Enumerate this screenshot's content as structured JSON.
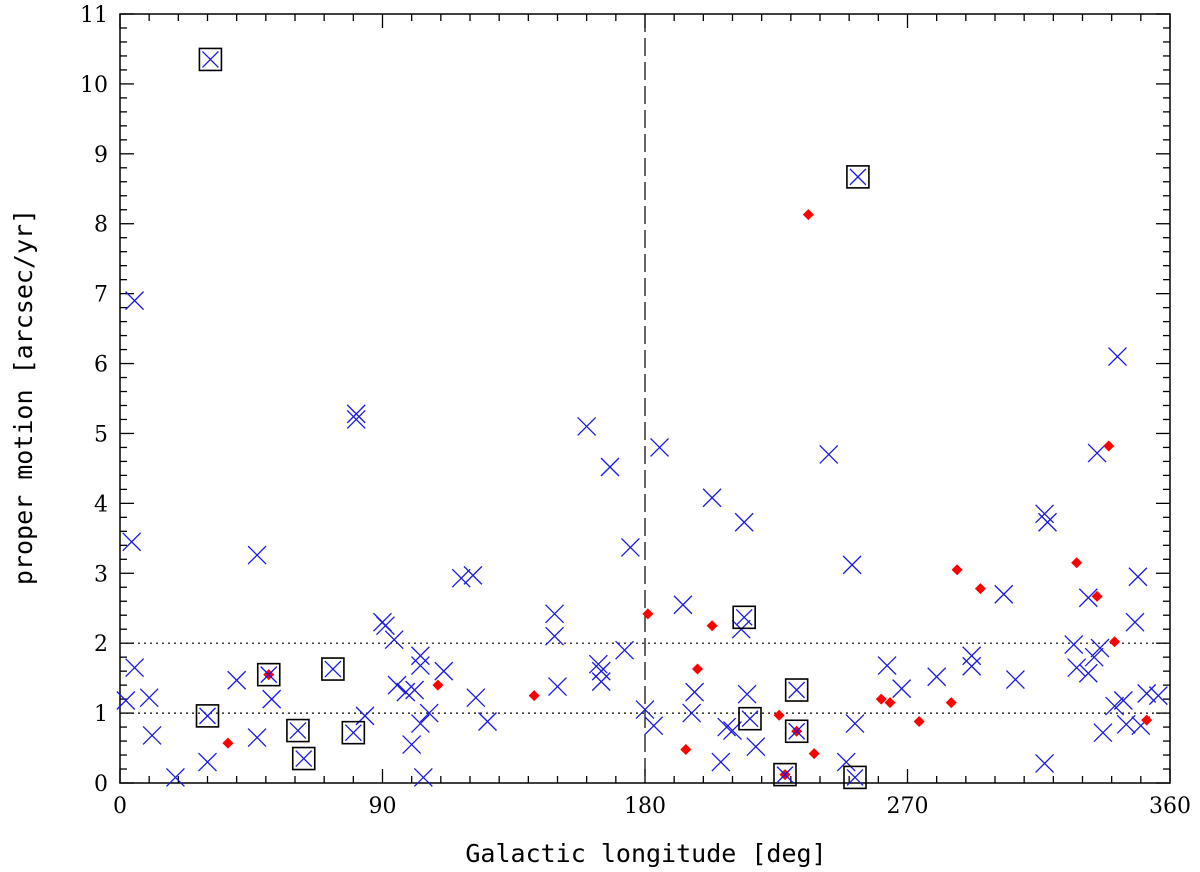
{
  "chart_data": {
    "type": "scatter",
    "title": "",
    "xlabel": "Galactic longitude [deg]",
    "ylabel": "proper motion [arcsec/yr]",
    "xlim": [
      0,
      360
    ],
    "ylim": [
      0,
      11
    ],
    "xticks": [
      0,
      90,
      180,
      270,
      360
    ],
    "yticks": [
      0,
      1,
      2,
      3,
      4,
      5,
      6,
      7,
      8,
      9,
      10,
      11
    ],
    "grid": false,
    "legend": "none",
    "reference_lines": [
      {
        "axis": "x",
        "value": 180,
        "style": "dashed"
      },
      {
        "axis": "y",
        "value": 1,
        "style": "dotted"
      },
      {
        "axis": "y",
        "value": 2,
        "style": "dotted"
      }
    ],
    "colors": {
      "cross": "#1a1ae0",
      "diamond": "#ff0000",
      "square": "#000000"
    },
    "series": [
      {
        "marker": "x",
        "points": [
          [
            2,
            1.18
          ],
          [
            4,
            3.45
          ],
          [
            5,
            6.9
          ],
          [
            5,
            1.65
          ],
          [
            10,
            1.22
          ],
          [
            11,
            0.68
          ],
          [
            19,
            0.08
          ],
          [
            30,
            0.3
          ],
          [
            40,
            1.47
          ],
          [
            47,
            3.26
          ],
          [
            47,
            0.65
          ],
          [
            52,
            1.2
          ],
          [
            81,
            5.28
          ],
          [
            81,
            5.2
          ],
          [
            84,
            0.96
          ],
          [
            90,
            2.3
          ],
          [
            91,
            2.25
          ],
          [
            94,
            2.05
          ],
          [
            95,
            1.4
          ],
          [
            98,
            1.3
          ],
          [
            100,
            0.55
          ],
          [
            101,
            1.33
          ],
          [
            103,
            1.82
          ],
          [
            103,
            1.68
          ],
          [
            103,
            0.85
          ],
          [
            104,
            0.08
          ],
          [
            106,
            1.0
          ],
          [
            111,
            1.6
          ],
          [
            117,
            2.93
          ],
          [
            121,
            2.97
          ],
          [
            122,
            1.22
          ],
          [
            126,
            0.88
          ],
          [
            149,
            2.42
          ],
          [
            149,
            2.1
          ],
          [
            150,
            1.38
          ],
          [
            160,
            5.1
          ],
          [
            164,
            1.7
          ],
          [
            165,
            1.6
          ],
          [
            165,
            1.45
          ],
          [
            168,
            4.52
          ],
          [
            173,
            1.9
          ],
          [
            175,
            3.37
          ],
          [
            180,
            1.05
          ],
          [
            183,
            0.82
          ],
          [
            185,
            4.8
          ],
          [
            193,
            2.55
          ],
          [
            196,
            1.0
          ],
          [
            197,
            1.3
          ],
          [
            203,
            4.08
          ],
          [
            206,
            0.3
          ],
          [
            208,
            0.8
          ],
          [
            210,
            0.75
          ],
          [
            213,
            2.2
          ],
          [
            214,
            3.73
          ],
          [
            215,
            1.27
          ],
          [
            218,
            0.52
          ],
          [
            243,
            4.7
          ],
          [
            249,
            0.3
          ],
          [
            251,
            3.12
          ],
          [
            252,
            0.85
          ],
          [
            263,
            1.68
          ],
          [
            268,
            1.35
          ],
          [
            280,
            1.52
          ],
          [
            292,
            1.82
          ],
          [
            292,
            1.67
          ],
          [
            303,
            2.7
          ],
          [
            307,
            1.48
          ],
          [
            317,
            3.85
          ],
          [
            317,
            0.28
          ],
          [
            318,
            3.73
          ],
          [
            327,
            1.98
          ],
          [
            328,
            1.65
          ],
          [
            332,
            1.57
          ],
          [
            332,
            2.65
          ],
          [
            334,
            1.8
          ],
          [
            335,
            4.72
          ],
          [
            336,
            1.93
          ],
          [
            337,
            0.72
          ],
          [
            341,
            1.1
          ],
          [
            342,
            6.1
          ],
          [
            344,
            1.18
          ],
          [
            345,
            0.84
          ],
          [
            348,
            2.3
          ],
          [
            349,
            2.95
          ],
          [
            350,
            0.82
          ],
          [
            352,
            1.28
          ],
          [
            356,
            1.25
          ]
        ]
      },
      {
        "marker": "diamond",
        "points": [
          [
            37,
            0.57
          ],
          [
            51,
            1.55
          ],
          [
            109,
            1.4
          ],
          [
            142,
            1.25
          ],
          [
            181,
            2.42
          ],
          [
            194,
            0.48
          ],
          [
            198,
            1.63
          ],
          [
            203,
            2.25
          ],
          [
            226,
            0.97
          ],
          [
            228,
            0.12
          ],
          [
            232,
            0.74
          ],
          [
            236,
            8.13
          ],
          [
            238,
            0.42
          ],
          [
            261,
            1.2
          ],
          [
            264,
            1.15
          ],
          [
            274,
            0.88
          ],
          [
            285,
            1.15
          ],
          [
            287,
            3.05
          ],
          [
            295,
            2.78
          ],
          [
            328,
            3.15
          ],
          [
            335,
            2.67
          ],
          [
            339,
            4.82
          ],
          [
            341,
            2.02
          ],
          [
            352,
            0.9
          ]
        ]
      },
      {
        "marker": "boxed-x",
        "points": [
          [
            31,
            10.35
          ],
          [
            30,
            0.96
          ],
          [
            51,
            1.55
          ],
          [
            61,
            0.75
          ],
          [
            63,
            0.35
          ],
          [
            73,
            1.63
          ],
          [
            80,
            0.72
          ],
          [
            214,
            2.37
          ],
          [
            216,
            0.92
          ],
          [
            228,
            0.12
          ],
          [
            232,
            0.74
          ],
          [
            232,
            1.33
          ],
          [
            253,
            8.67
          ],
          [
            252,
            0.08
          ]
        ]
      }
    ]
  }
}
